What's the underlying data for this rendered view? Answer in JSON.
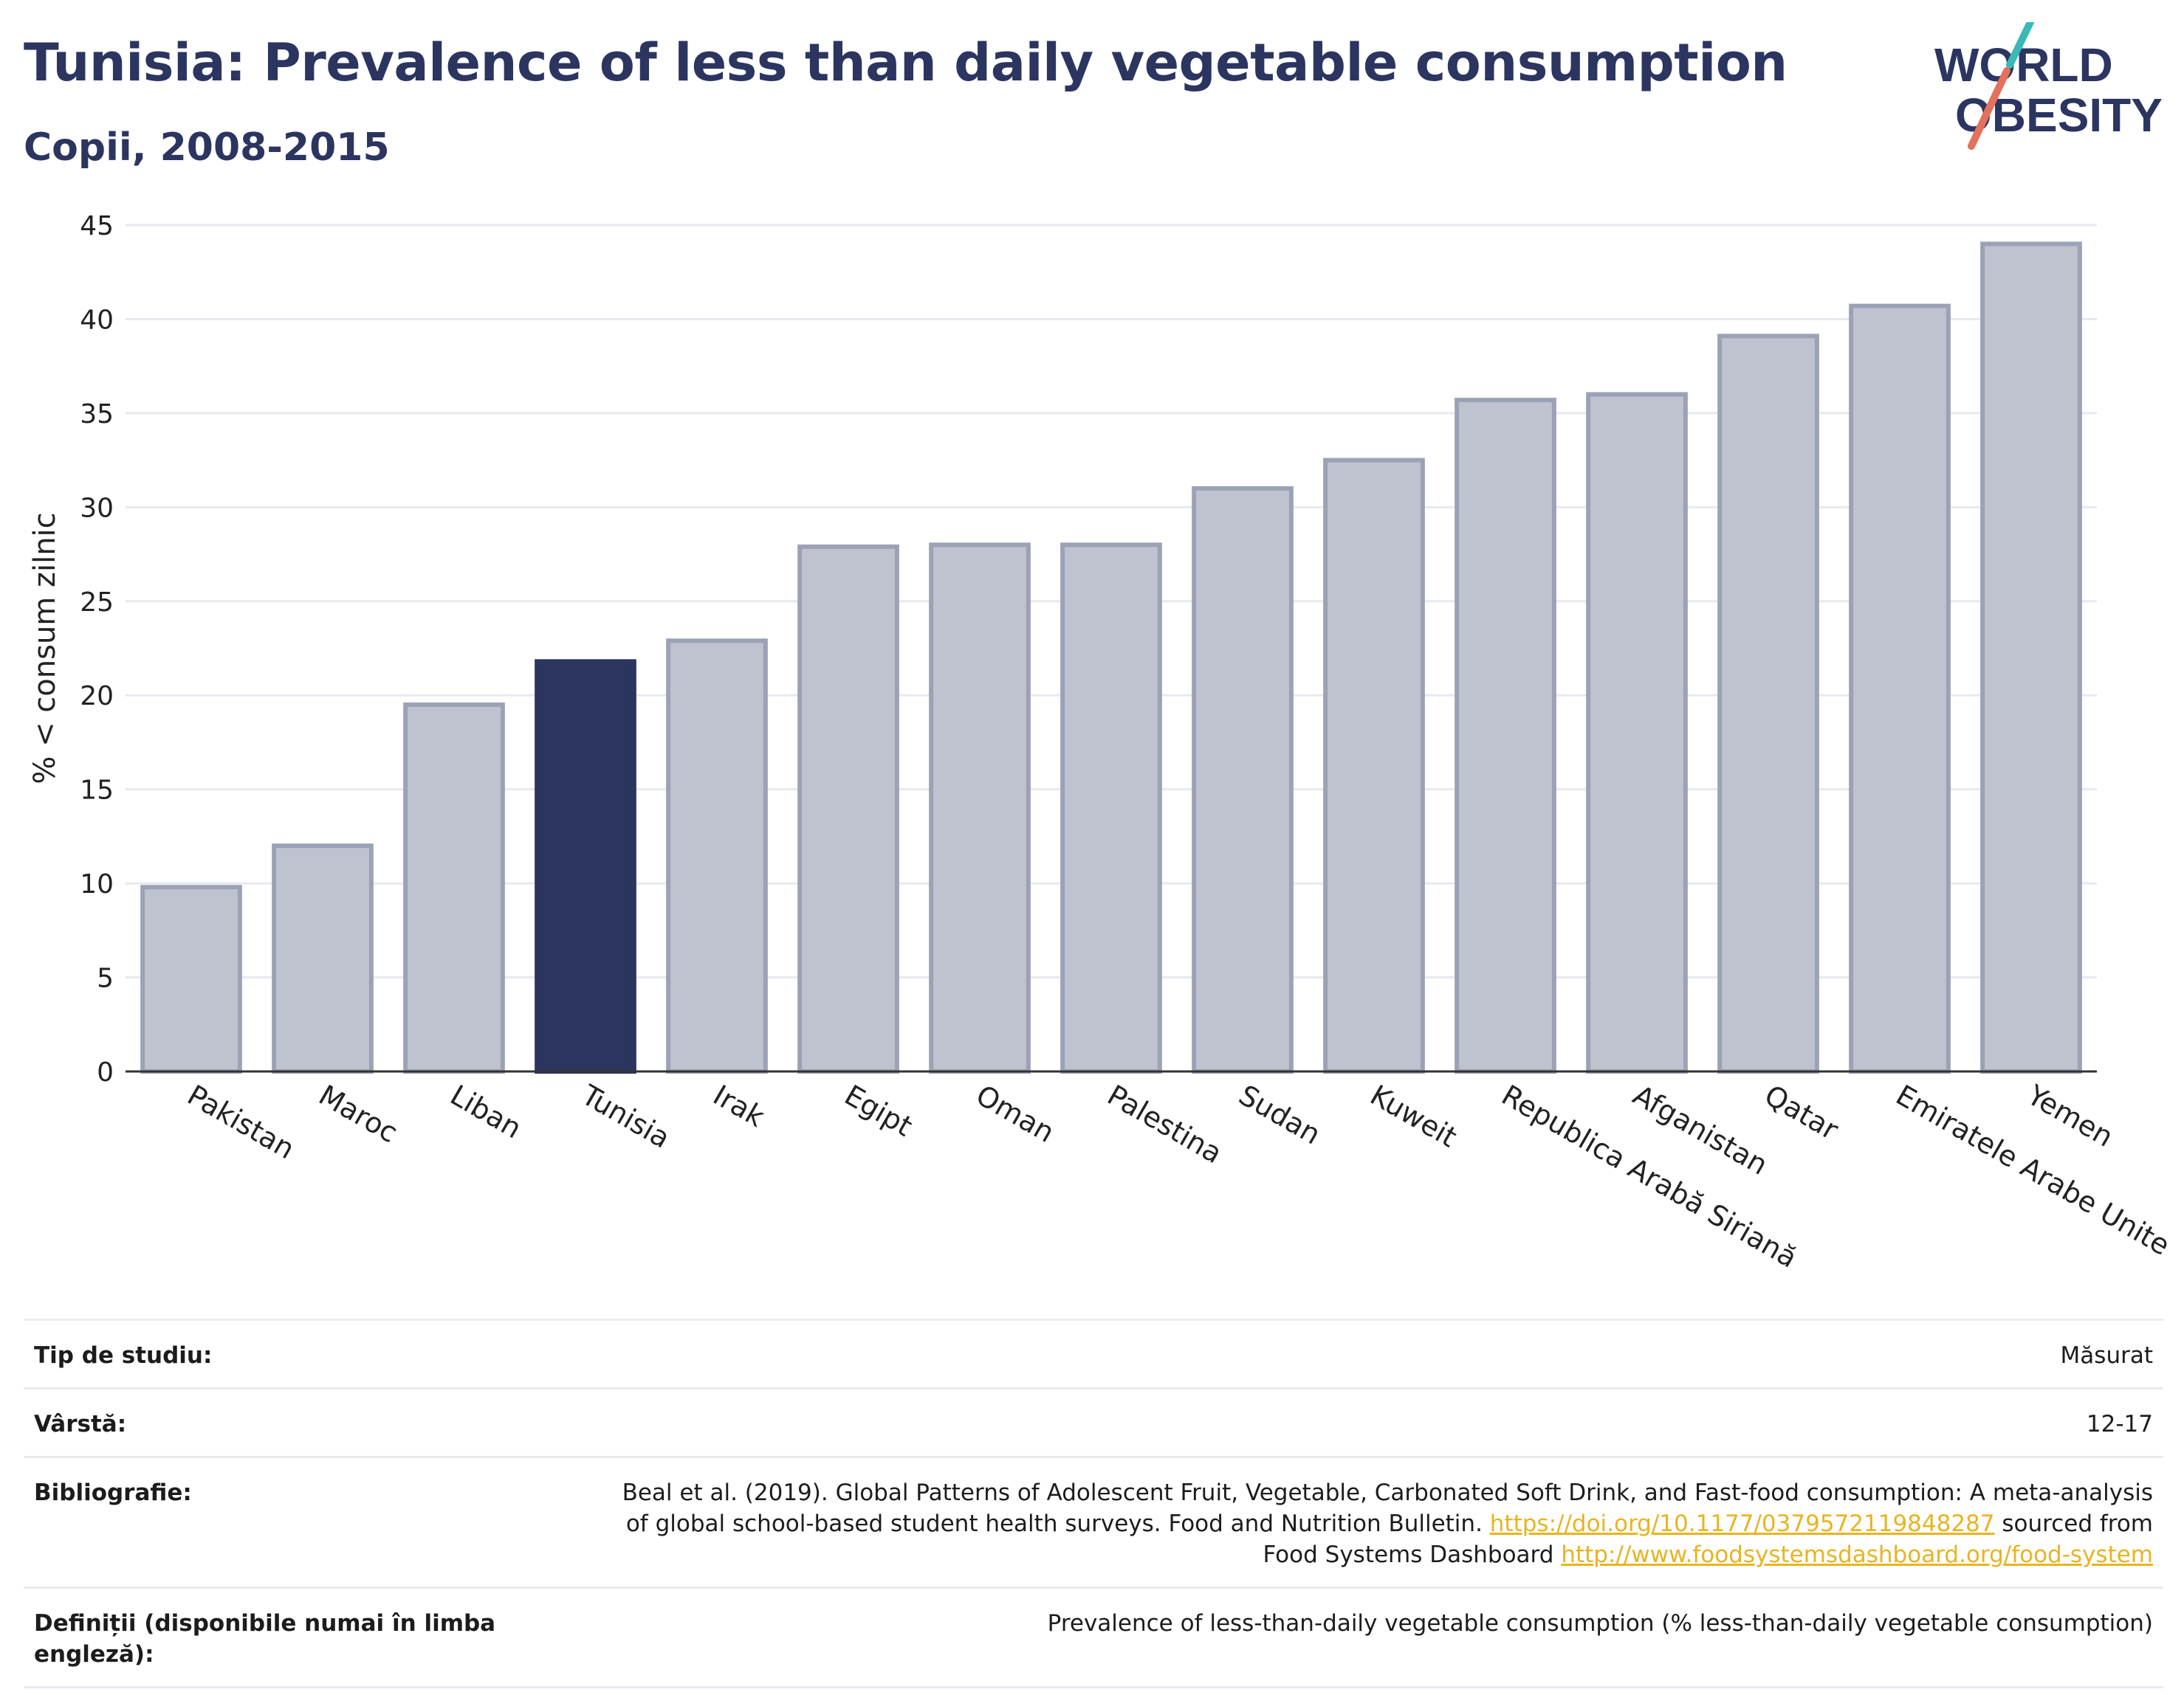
{
  "header": {
    "title": "Tunisia: Prevalence of less than daily vegetable consumption",
    "subtitle": "Copii, 2008-2015"
  },
  "logo": {
    "line1": "WORLD",
    "line2": "OBESITY",
    "colors": {
      "text": "#2b3560",
      "teal": "#3bb8b8",
      "coral": "#e4705e"
    }
  },
  "chart_data": {
    "type": "bar",
    "title": "Tunisia: Prevalence of less than daily vegetable consumption",
    "subtitle": "Copii, 2008-2015",
    "ylabel": "% < consum zilnic",
    "xlabel": "",
    "ylim": [
      0,
      45
    ],
    "yticks": [
      0,
      5,
      10,
      15,
      20,
      25,
      30,
      35,
      40,
      45
    ],
    "grid": true,
    "categories": [
      "Pakistan",
      "Maroc",
      "Liban",
      "Tunisia",
      "Irak",
      "Egipt",
      "Oman",
      "Palestina",
      "Sudan",
      "Kuweit",
      "Republica Arabă Siriană",
      "Afganistan",
      "Qatar",
      "Emiratele Arabe Unite",
      "Yemen"
    ],
    "values": [
      9.8,
      12.0,
      19.5,
      21.8,
      22.9,
      27.9,
      28.0,
      28.0,
      31.0,
      32.5,
      35.7,
      36.0,
      39.1,
      40.7,
      44.0
    ],
    "highlight": "Tunisia",
    "colors": {
      "bar": "#bfc3d0",
      "bar_border": "#9ca2b6",
      "highlight": "#2b3560",
      "grid": "#e8e9ee",
      "axis": "#333333"
    }
  },
  "meta": [
    {
      "label": "Tip de studiu:",
      "value": "Măsurat"
    },
    {
      "label": "Vârstă:",
      "value": "12-17"
    },
    {
      "label": "Bibliografie:",
      "value_line1": "Beal et al. (2019). Global Patterns of Adolescent Fruit, Vegetable, Carbonated Soft Drink, and Fast-food consumption: A meta-analysis",
      "value_line2": "of global school-based student health surveys. Food and Nutrition Bulletin.",
      "link1": "https://doi.org/10.1177/0379572119848287",
      "text_after_link1": "sourced from",
      "value_line3": "Food Systems Dashboard",
      "link2": "http://www.foodsystemsdashboard.org/food-system"
    },
    {
      "label": "Definiții (disponibile numai în limba engleză):",
      "value": "Prevalence of less-than-daily vegetable consumption (% less-than-daily vegetable consumption)"
    }
  ]
}
